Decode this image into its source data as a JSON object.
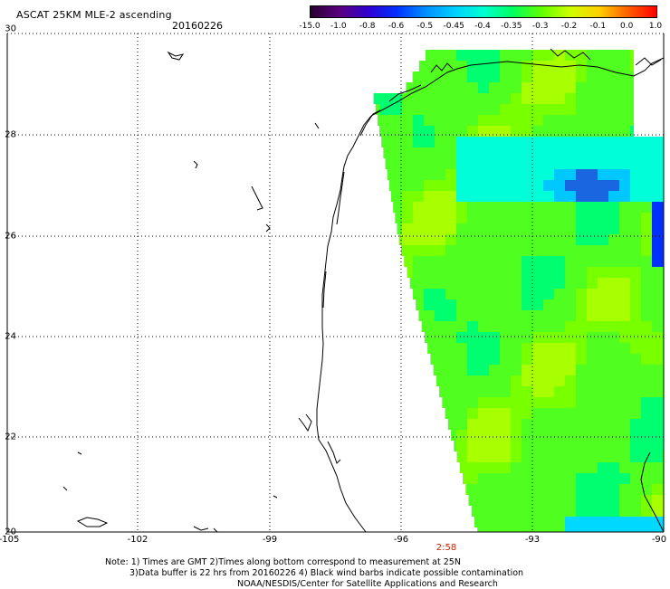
{
  "title": "ASCAT 25KM MLE-2 ascending",
  "date": "20160226",
  "colorbar": {
    "ticks": [
      "-15.0",
      "-1.0",
      "-0.8",
      "-0.6",
      "-0.5",
      "-0.45",
      "-0.4",
      "-0.35",
      "-0.3",
      "-0.2",
      "-0.1",
      "0.0",
      "1.0"
    ],
    "colors": [
      "#2a0030",
      "#5a0080",
      "#3000d0",
      "#0030ff",
      "#0090ff",
      "#00d0ff",
      "#00ffd0",
      "#00ff60",
      "#60ff00",
      "#d0ff00",
      "#ffd000",
      "#ff6000",
      "#ff0000"
    ]
  },
  "axes": {
    "lat_labels": [
      "30",
      "28",
      "26",
      "24",
      "22",
      "20"
    ],
    "lon_labels": [
      "-105",
      "-102",
      "-99",
      "-96",
      "-93",
      "-90"
    ]
  },
  "time_label": "2:58",
  "notes": {
    "line1": "Note: 1) Times are GMT 2)Times along bottom correspond to measurement at 25N",
    "line2": "3)Data buffer is 22 hrs from 20160226 4) Black wind barbs indicate possible contamination",
    "line3": "NOAA/NESDIS/Center for Satellite Applications and Research"
  }
}
